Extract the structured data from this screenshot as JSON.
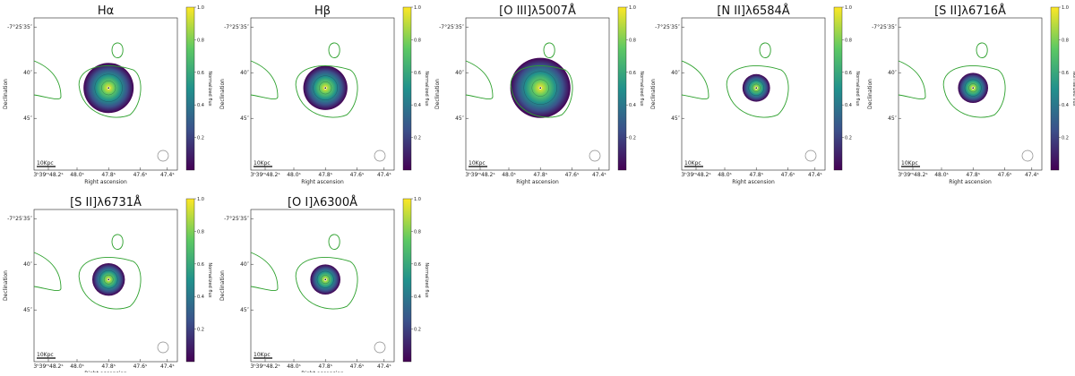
{
  "figure": {
    "colormap_stops": [
      "#440154",
      "#3b528b",
      "#21918c",
      "#5ec962",
      "#fde725"
    ],
    "contour_color": "#2ca02c",
    "map_outline_color": "#222222"
  },
  "chart_data": [
    {
      "type": "heatmap",
      "title": "Hα",
      "xlabel": "Right ascension",
      "ylabel": "Declination",
      "x_ticks": [
        "3ʰ39ᵐ48.2ˢ",
        "48.0ˢ",
        "47.8ˢ",
        "47.6ˢ",
        "47.4ˢ"
      ],
      "y_ticks": [
        "-7°25′35″",
        "40″",
        "45″"
      ],
      "scale_bar_label": "10Kpc",
      "colorbar_label": "Normalized flux",
      "colorbar_ticks": [
        "0.2",
        "0.4",
        "0.6",
        "0.8",
        "1.0"
      ],
      "colorbar_range": [
        0.0,
        1.0
      ],
      "emission_extent": 1.0,
      "peak_flux": 1.0
    },
    {
      "type": "heatmap",
      "title": "Hβ",
      "xlabel": "Right ascension",
      "ylabel": "Declination",
      "x_ticks": [
        "3ʰ39ᵐ48.2ˢ",
        "48.0ˢ",
        "47.8ˢ",
        "47.6ˢ",
        "47.4ˢ"
      ],
      "y_ticks": [
        "-7°25′35″",
        "40″",
        "45″"
      ],
      "scale_bar_label": "10Kpc",
      "colorbar_label": "Normalized flux",
      "colorbar_ticks": [
        "0.2",
        "0.4",
        "0.6",
        "0.8",
        "1.0"
      ],
      "colorbar_range": [
        0.0,
        1.0
      ],
      "emission_extent": 0.88,
      "peak_flux": 1.0
    },
    {
      "type": "heatmap",
      "title": "[O III]λ5007Å",
      "xlabel": "Right ascension",
      "ylabel": "Declination",
      "x_ticks": [
        "3ʰ39ᵐ48.2ˢ",
        "48.0ˢ",
        "47.8ˢ",
        "47.6ˢ",
        "47.4ˢ"
      ],
      "y_ticks": [
        "-7°25′35″",
        "40″",
        "45″"
      ],
      "scale_bar_label": "10Kpc",
      "colorbar_label": "Normalized flux",
      "colorbar_ticks": [
        "0.2",
        "0.4",
        "0.6",
        "0.8",
        "1.0"
      ],
      "colorbar_range": [
        0.0,
        1.0
      ],
      "emission_extent": 1.2,
      "peak_flux": 1.0
    },
    {
      "type": "heatmap",
      "title": "[N II]λ6584Å",
      "xlabel": "Right ascension",
      "ylabel": "Declination",
      "x_ticks": [
        "3ʰ39ᵐ48.2ˢ",
        "48.0ˢ",
        "47.8ˢ",
        "47.6ˢ",
        "47.4ˢ"
      ],
      "y_ticks": [
        "-7°25′35″",
        "40″",
        "45″"
      ],
      "scale_bar_label": "10Kpc",
      "colorbar_label": "Normalized flux",
      "colorbar_ticks": [
        "0.2",
        "0.4",
        "0.6",
        "0.8",
        "1.0"
      ],
      "colorbar_range": [
        0.0,
        1.0
      ],
      "emission_extent": 0.55,
      "peak_flux": 1.0
    },
    {
      "type": "heatmap",
      "title": "[S II]λ6716Å",
      "xlabel": "Right ascension",
      "ylabel": "Declination",
      "x_ticks": [
        "3ʰ39ᵐ48.2ˢ",
        "48.0ˢ",
        "47.8ˢ",
        "47.6ˢ",
        "47.4ˢ"
      ],
      "y_ticks": [
        "-7°25′35″",
        "40″",
        "45″"
      ],
      "scale_bar_label": "10Kpc",
      "colorbar_label": "Normalized flux",
      "colorbar_ticks": [
        "0.2",
        "0.4",
        "0.6",
        "0.8",
        "1.0"
      ],
      "colorbar_range": [
        0.0,
        1.0
      ],
      "emission_extent": 0.6,
      "peak_flux": 1.0
    },
    {
      "type": "heatmap",
      "title": "[S II]λ6731Å",
      "xlabel": "Right ascension",
      "ylabel": "Declination",
      "x_ticks": [
        "3ʰ39ᵐ48.2ˢ",
        "48.0ˢ",
        "47.8ˢ",
        "47.6ˢ",
        "47.4ˢ"
      ],
      "y_ticks": [
        "-7°25′35″",
        "40″",
        "45″"
      ],
      "scale_bar_label": "10Kpc",
      "colorbar_label": "Normalized flux",
      "colorbar_ticks": [
        "0.2",
        "0.4",
        "0.6",
        "0.8",
        "1.0"
      ],
      "colorbar_range": [
        0.0,
        1.0
      ],
      "emission_extent": 0.65,
      "peak_flux": 1.0
    },
    {
      "type": "heatmap",
      "title": "[O I]λ6300Å",
      "xlabel": "Right ascension",
      "ylabel": "Declination",
      "x_ticks": [
        "3ʰ39ᵐ48.2ˢ",
        "48.0ˢ",
        "47.8ˢ",
        "47.6ˢ",
        "47.4ˢ"
      ],
      "y_ticks": [
        "-7°25′35″",
        "40″",
        "45″"
      ],
      "scale_bar_label": "10Kpc",
      "colorbar_label": "Normalized flux",
      "colorbar_ticks": [
        "0.2",
        "0.4",
        "0.6",
        "0.8",
        "1.0"
      ],
      "colorbar_range": [
        0.0,
        1.0
      ],
      "emission_extent": 0.6,
      "peak_flux": 1.0
    }
  ]
}
